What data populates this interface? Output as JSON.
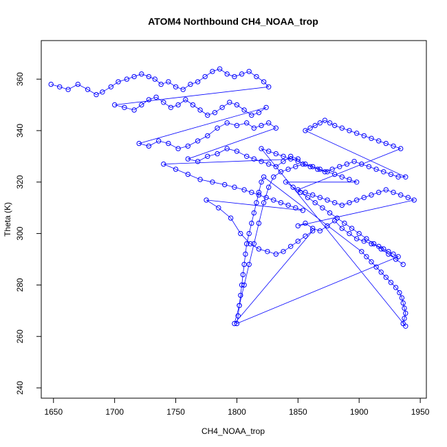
{
  "chart_data": {
    "type": "scatter",
    "title": "ATOM4 Northbound CH4_NOAA_trop",
    "xlabel": "CH4_NOAA_trop",
    "ylabel": "Theta (K)",
    "xlim": [
      1640,
      1955
    ],
    "ylim": [
      236,
      375
    ],
    "xticks": [
      1650,
      1700,
      1750,
      1800,
      1850,
      1900,
      1950
    ],
    "yticks": [
      240,
      260,
      280,
      300,
      320,
      340,
      360
    ],
    "grid": false,
    "legend": "none",
    "marker": "open circle",
    "connected": true,
    "color": "#0000ff",
    "x": [
      1648,
      1655,
      1662,
      1670,
      1678,
      1685,
      1690,
      1697,
      1703,
      1710,
      1716,
      1722,
      1728,
      1733,
      1738,
      1744,
      1750,
      1756,
      1762,
      1768,
      1774,
      1780,
      1786,
      1792,
      1798,
      1804,
      1810,
      1816,
      1822,
      1826,
      1700,
      1708,
      1716,
      1722,
      1728,
      1734,
      1740,
      1746,
      1752,
      1758,
      1764,
      1770,
      1776,
      1782,
      1788,
      1794,
      1800,
      1806,
      1812,
      1818,
      1824,
      1720,
      1728,
      1736,
      1744,
      1752,
      1760,
      1768,
      1776,
      1784,
      1792,
      1800,
      1808,
      1814,
      1820,
      1826,
      1832,
      1760,
      1768,
      1776,
      1784,
      1792,
      1800,
      1808,
      1814,
      1820,
      1826,
      1832,
      1838,
      1844,
      1850,
      1740,
      1750,
      1760,
      1770,
      1780,
      1790,
      1798,
      1806,
      1812,
      1818,
      1824,
      1830,
      1836,
      1842,
      1848,
      1854,
      1775,
      1785,
      1795,
      1803,
      1811,
      1818,
      1825,
      1832,
      1838,
      1844,
      1850,
      1856,
      1862,
      1798,
      1802,
      1806,
      1810,
      1814,
      1818,
      1822,
      1826,
      1830,
      1836,
      1842,
      1848,
      1854,
      1860,
      1866,
      1872,
      1878,
      1884,
      1890,
      1896,
      1902,
      1908,
      1914,
      1920,
      1926,
      1932,
      1938,
      1856,
      1860,
      1864,
      1868,
      1872,
      1876,
      1880,
      1886,
      1892,
      1898,
      1904,
      1910,
      1916,
      1922,
      1928,
      1934,
      1850,
      1856,
      1862,
      1868,
      1874,
      1880,
      1886,
      1892,
      1898,
      1904,
      1910,
      1916,
      1922,
      1928,
      1934,
      1940,
      1945,
      1850,
      1856,
      1862,
      1868,
      1874,
      1880,
      1886,
      1892,
      1898,
      1904,
      1910,
      1916,
      1920,
      1924,
      1928,
      1932,
      1800,
      1801,
      1802,
      1803,
      1804,
      1805,
      1806,
      1807,
      1808,
      1810,
      1812,
      1814,
      1816,
      1818,
      1820,
      1822,
      1902,
      1906,
      1910,
      1914,
      1918,
      1922,
      1926,
      1930,
      1933,
      1935,
      1936,
      1937,
      1938,
      1937,
      1936,
      1938,
      1820,
      1826,
      1832,
      1838,
      1844,
      1850,
      1856,
      1862,
      1868,
      1874,
      1880,
      1886,
      1892,
      1898,
      1840,
      1846,
      1852,
      1858,
      1864,
      1870,
      1876,
      1882,
      1888,
      1894,
      1900,
      1906,
      1912,
      1918,
      1924,
      1930,
      1936
    ],
    "y": [
      358,
      357,
      356,
      358,
      356,
      354,
      355,
      357,
      359,
      360,
      361,
      362,
      361,
      360,
      358,
      359,
      357,
      356,
      358,
      359,
      361,
      363,
      364,
      362,
      361,
      362,
      363,
      361,
      359,
      357,
      350,
      349,
      348,
      350,
      352,
      353,
      351,
      349,
      350,
      352,
      350,
      348,
      346,
      347,
      349,
      351,
      350,
      348,
      346,
      347,
      349,
      335,
      334,
      336,
      335,
      333,
      334,
      336,
      338,
      341,
      343,
      342,
      343,
      341,
      342,
      343,
      341,
      329,
      328,
      330,
      331,
      333,
      332,
      330,
      329,
      328,
      327,
      326,
      328,
      330,
      329,
      327,
      325,
      323,
      321,
      320,
      319,
      318,
      317,
      316,
      315,
      314,
      313,
      312,
      311,
      310,
      309,
      313,
      310,
      306,
      300,
      296,
      294,
      293,
      292,
      293,
      295,
      297,
      299,
      301,
      265,
      272,
      280,
      288,
      296,
      304,
      312,
      318,
      322,
      324,
      325,
      326,
      327,
      326,
      325,
      324,
      325,
      326,
      327,
      328,
      327,
      326,
      325,
      324,
      323,
      322,
      322,
      340,
      341,
      342,
      343,
      344,
      343,
      342,
      341,
      340,
      339,
      338,
      337,
      336,
      335,
      334,
      333,
      317,
      316,
      315,
      314,
      313,
      312,
      311,
      312,
      313,
      314,
      315,
      316,
      317,
      316,
      315,
      314,
      313,
      303,
      304,
      302,
      301,
      303,
      305,
      302,
      300,
      298,
      297,
      296,
      295,
      294,
      293,
      292,
      291,
      265,
      268,
      272,
      276,
      280,
      284,
      288,
      292,
      296,
      300,
      304,
      308,
      312,
      316,
      320,
      322,
      293,
      291,
      289,
      287,
      285,
      283,
      281,
      279,
      277,
      275,
      273,
      271,
      269,
      267,
      265,
      264,
      333,
      332,
      331,
      330,
      329,
      328,
      327,
      326,
      325,
      324,
      323,
      322,
      321,
      320,
      320,
      318,
      316,
      314,
      312,
      310,
      308,
      306,
      304,
      302,
      300,
      298,
      296,
      294,
      292,
      290,
      288
    ]
  }
}
